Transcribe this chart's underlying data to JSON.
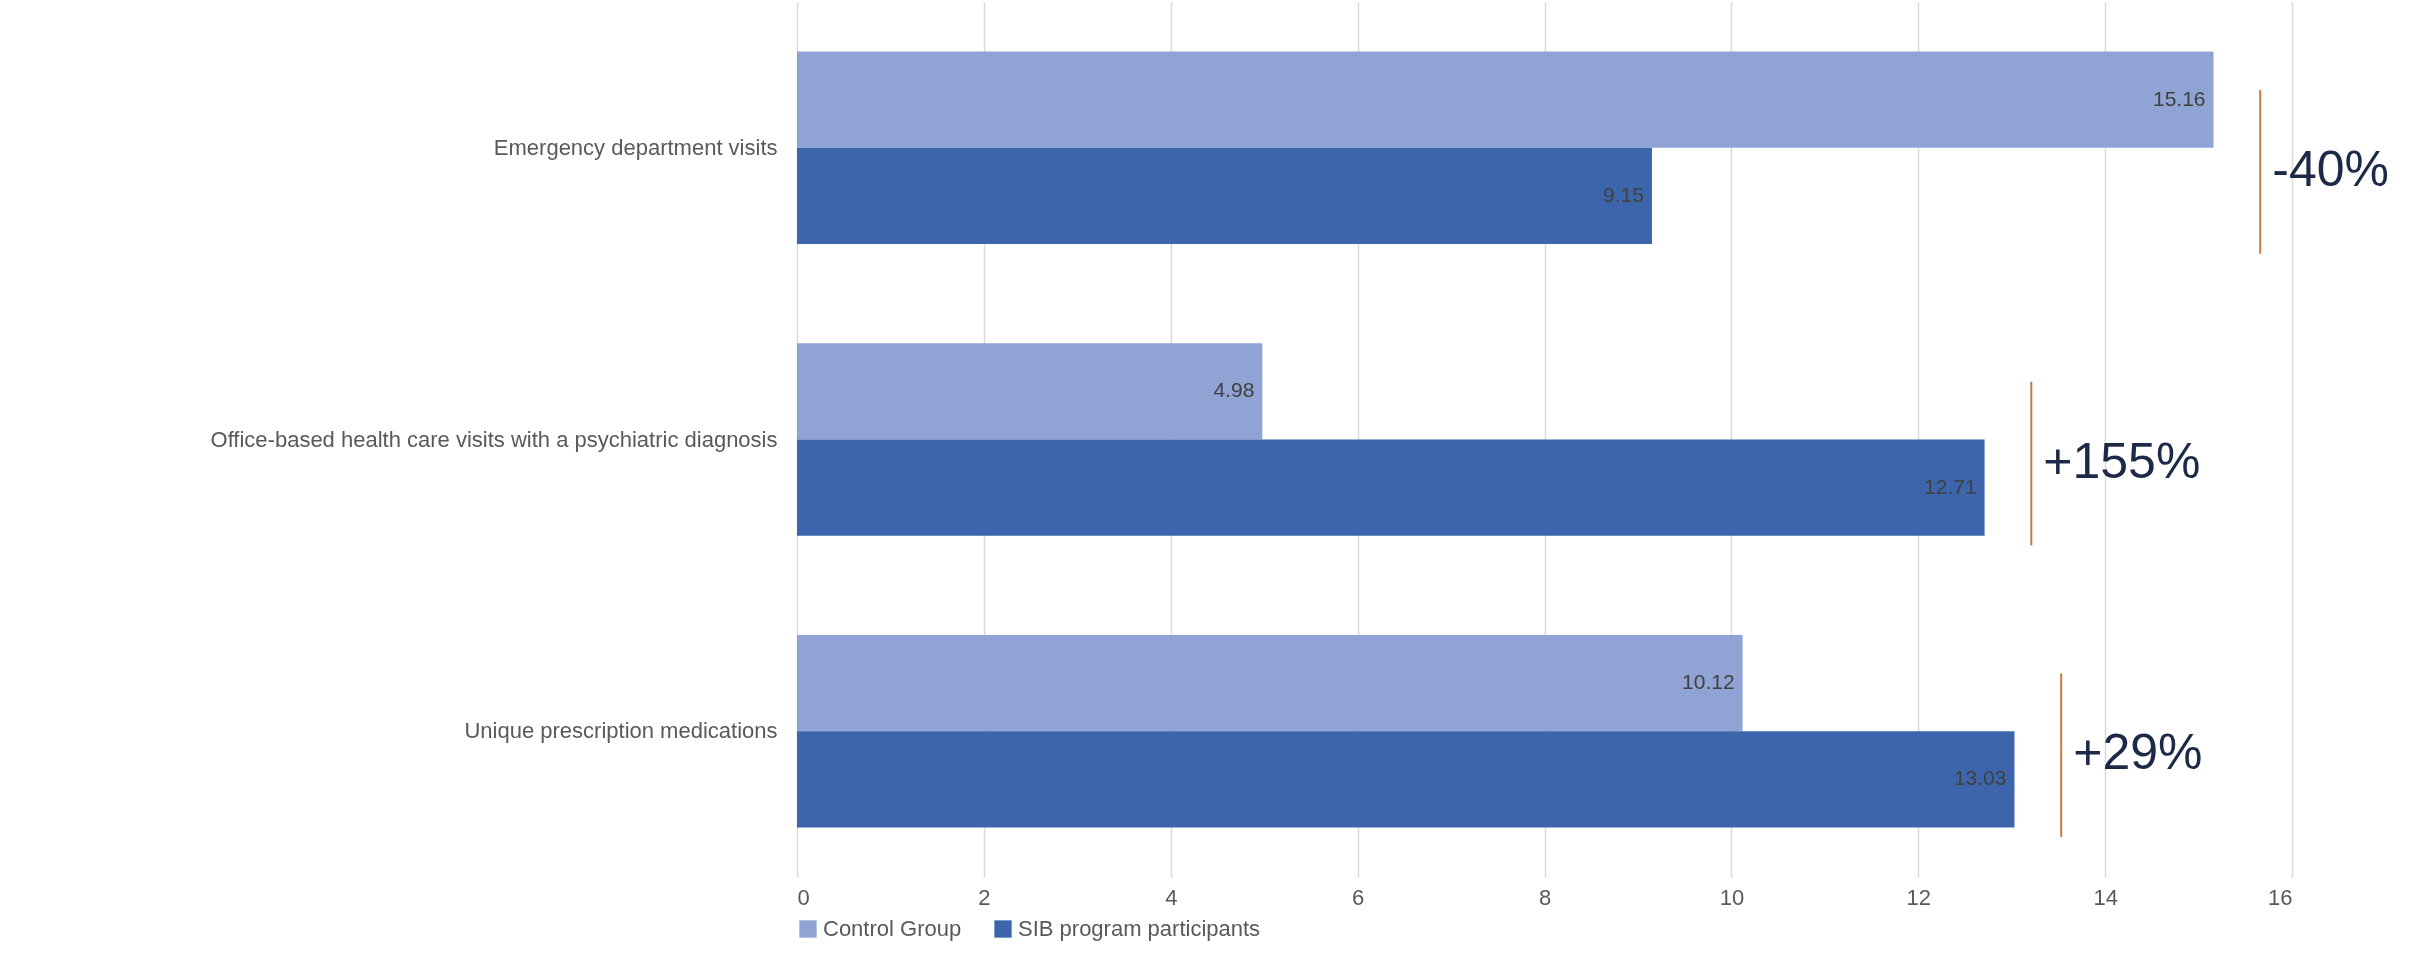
{
  "chart_data": {
    "type": "bar",
    "orientation": "horizontal",
    "categories": [
      "Emergency department visits",
      "Office-based health care visits with a psychiatric diagnosis",
      "Unique prescription medications"
    ],
    "series": [
      {
        "name": "Control Group",
        "color": "#8fa4d4",
        "values": [
          15.16,
          4.98,
          10.12
        ]
      },
      {
        "name": "SIB program participants",
        "color": "#3d65ac",
        "values": [
          9.15,
          12.71,
          13.03
        ]
      }
    ],
    "data_labels": true,
    "xlim": [
      0,
      16
    ],
    "xticks": [
      0,
      2,
      4,
      6,
      8,
      10,
      12,
      14,
      16
    ],
    "grid": "x",
    "legend": "bottom",
    "annotations": [
      "-40%",
      "+155%",
      "+29%"
    ]
  }
}
